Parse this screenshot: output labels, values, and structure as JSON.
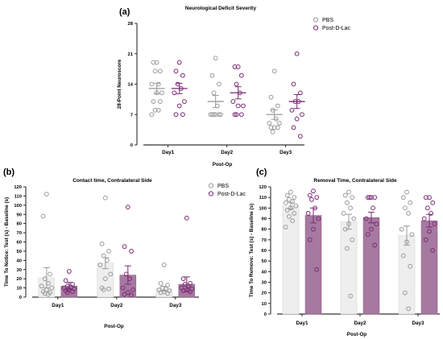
{
  "colors": {
    "pbs": "#9a9a9a",
    "lac": "#7b2a74",
    "pbs_bar": "#eeeeee",
    "lac_bar": "#a679a0"
  },
  "chart_data": [
    {
      "id": "a",
      "letter": "(a)",
      "type": "scatter",
      "title": "Neurological Deficit Severity",
      "xlabel": "Post-Op",
      "ylabel": "28-Point Neuroscore",
      "ylim": [
        0,
        28
      ],
      "yticks": [
        0,
        7,
        14,
        21,
        28
      ],
      "categories": [
        "Day1",
        "Day2",
        "Day3"
      ],
      "legend_position": "top-right",
      "series": [
        {
          "name": "PBS",
          "key": "pbs",
          "means": [
            13,
            10,
            7
          ],
          "sems": [
            1.2,
            1.4,
            1.1
          ],
          "points": [
            [
              19,
              19,
              17,
              17,
              14,
              14,
              12,
              12,
              10,
              10,
              8,
              8,
              7
            ],
            [
              20,
              16,
              14,
              12,
              9,
              7,
              7,
              7,
              7,
              7,
              7
            ],
            [
              17,
              11,
              9,
              8,
              6,
              5,
              5,
              4,
              4,
              4,
              3
            ]
          ]
        },
        {
          "name": "Post-D-Lac",
          "key": "lac",
          "means": [
            13,
            12,
            10
          ],
          "sems": [
            1.2,
            1.4,
            1.6
          ],
          "points": [
            [
              19,
              17,
              16,
              14,
              13,
              12,
              10,
              9,
              7,
              7
            ],
            [
              18,
              18,
              16,
              14,
              12,
              10,
              9,
              9,
              7,
              7,
              7
            ],
            [
              21,
              14,
              12,
              10,
              10,
              8,
              7,
              6,
              4,
              2
            ]
          ]
        }
      ]
    },
    {
      "id": "b",
      "letter": "(b)",
      "type": "bar",
      "title": "Contact time, Contralateral Side",
      "xlabel": "Post-Op",
      "ylabel": "Time To Notice: Test (s) - Baseline (s)",
      "ylim": [
        0,
        120
      ],
      "yticks": [
        0,
        10,
        20,
        30,
        40,
        50,
        60,
        70,
        80,
        90,
        100,
        110,
        120
      ],
      "categories": [
        "Day1",
        "Day2",
        "Day3"
      ],
      "legend_position": "top-right",
      "series": [
        {
          "name": "PBS",
          "key": "pbs",
          "means": [
            21,
            37,
            9
          ],
          "sems": [
            11,
            6,
            2.5
          ],
          "points": [
            [
              112,
              88,
              25,
              20,
              15,
              12,
              10,
              8,
              6,
              5,
              4,
              3
            ],
            [
              108,
              58,
              50,
              45,
              40,
              35,
              25,
              20,
              10,
              9,
              8
            ],
            [
              35,
              15,
              13,
              10,
              9,
              8,
              7,
              6,
              5,
              4
            ]
          ]
        },
        {
          "name": "Post-D-Lac",
          "key": "lac",
          "means": [
            12,
            24,
            14
          ],
          "sems": [
            4,
            10,
            8
          ],
          "points": [
            [
              28,
              18,
              14,
              12,
              11,
              10,
              9,
              8,
              7,
              6,
              5
            ],
            [
              98,
              55,
              50,
              25,
              20,
              10,
              8,
              5,
              3,
              2
            ],
            [
              86,
              20,
              15,
              14,
              12,
              10,
              9,
              8,
              7,
              6
            ]
          ]
        }
      ]
    },
    {
      "id": "c",
      "letter": "(c)",
      "type": "bar",
      "title": "Removal Time, Contralateral Side",
      "xlabel": "Post-Op",
      "ylabel": "Time To Remove: Test (s) - Baseline (s)",
      "ylim": [
        0,
        120
      ],
      "yticks": [
        0,
        10,
        20,
        30,
        40,
        50,
        60,
        70,
        80,
        90,
        100,
        110,
        120
      ],
      "categories": [
        "Day1",
        "Day2",
        "Day3"
      ],
      "series": [
        {
          "name": "PBS",
          "key": "pbs",
          "means": [
            102,
            87,
            74
          ],
          "sems": [
            3,
            7,
            9
          ],
          "points": [
            [
              115,
              112,
              110,
              108,
              106,
              105,
              102,
              100,
              98,
              95,
              92,
              88,
              82
            ],
            [
              115,
              112,
              110,
              105,
              100,
              95,
              90,
              85,
              80,
              70,
              62,
              17
            ],
            [
              115,
              110,
              105,
              100,
              95,
              80,
              75,
              68,
              55,
              45,
              20,
              5
            ]
          ]
        },
        {
          "name": "Post-D-Lac",
          "key": "lac",
          "means": [
            93,
            91,
            88
          ],
          "sems": [
            7,
            5,
            6
          ],
          "points": [
            [
              116,
              112,
              110,
              108,
              100,
              95,
              90,
              80,
              70,
              42
            ],
            [
              110,
              110,
              110,
              110,
              100,
              90,
              85,
              80,
              75,
              65
            ],
            [
              110,
              110,
              105,
              100,
              95,
              90,
              85,
              78,
              70,
              60
            ]
          ]
        }
      ]
    }
  ]
}
